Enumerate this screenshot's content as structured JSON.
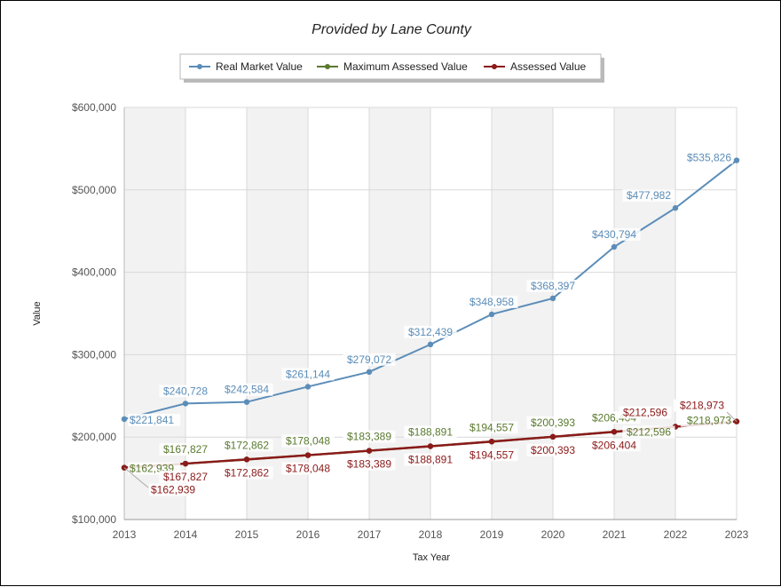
{
  "chart_data": {
    "type": "line",
    "title": "Provided by Lane County",
    "xlabel": "Tax Year",
    "ylabel": "Value",
    "categories": [
      "2013",
      "2014",
      "2015",
      "2016",
      "2017",
      "2018",
      "2019",
      "2020",
      "2021",
      "2022",
      "2023"
    ],
    "ylim": [
      100000,
      600000
    ],
    "yticks": [
      {
        "value": 100000,
        "label": "$100,000"
      },
      {
        "value": 200000,
        "label": "$200,000"
      },
      {
        "value": 300000,
        "label": "$300,000"
      },
      {
        "value": 400000,
        "label": "$400,000"
      },
      {
        "value": 500000,
        "label": "$500,000"
      },
      {
        "value": 600000,
        "label": "$600,000"
      }
    ],
    "grid": true,
    "legend_position": "top-center",
    "series": [
      {
        "name": "Real Market Value",
        "color": "#5b8db8",
        "values": [
          221841,
          240728,
          242584,
          261144,
          279072,
          312439,
          348958,
          368397,
          430794,
          477982,
          535826
        ],
        "labels": [
          "$221,841",
          "$240,728",
          "$242,584",
          "$261,144",
          "$279,072",
          "$312,439",
          "$348,958",
          "$368,397",
          "$430,794",
          "$477,982",
          "$535,826"
        ]
      },
      {
        "name": "Maximum Assessed Value",
        "color": "#5a7a2e",
        "values": [
          162939,
          167827,
          172862,
          178048,
          183389,
          188891,
          194557,
          200393,
          206404,
          212596,
          218973
        ],
        "labels": [
          "$162,939",
          "$167,827",
          "$172,862",
          "$178,048",
          "$183,389",
          "$188,891",
          "$194,557",
          "$200,393",
          "$206,404",
          "$212,596",
          "$218,973"
        ]
      },
      {
        "name": "Assessed Value",
        "color": "#8b1a1a",
        "values": [
          162939,
          167827,
          172862,
          178048,
          183389,
          188891,
          194557,
          200393,
          206404,
          212596,
          218973
        ],
        "labels": [
          "$162,939",
          "$167,827",
          "$172,862",
          "$178,048",
          "$183,389",
          "$188,891",
          "$194,557",
          "$200,393",
          "$206,404",
          "$212,596",
          "$218,973"
        ]
      }
    ]
  }
}
